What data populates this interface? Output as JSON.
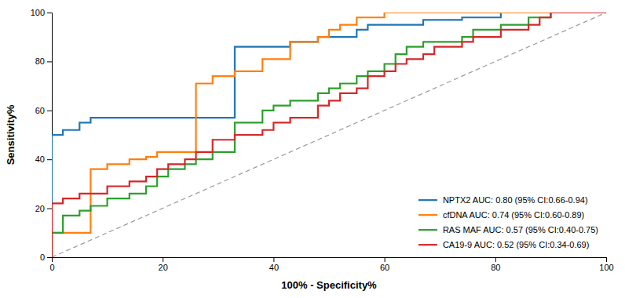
{
  "chart_data": {
    "type": "line",
    "xlabel": "100% - Specificity%",
    "ylabel": "Sensitivity%",
    "xlim": [
      0,
      100
    ],
    "ylim": [
      0,
      100
    ],
    "xticks": [
      0,
      20,
      40,
      60,
      80,
      100
    ],
    "yticks": [
      0,
      20,
      40,
      60,
      80,
      100
    ],
    "grid": false,
    "legend": "lower right",
    "series": [
      {
        "color": "#999999",
        "line_style": "dashed",
        "x": [
          0,
          100
        ],
        "values": [
          0,
          100
        ]
      },
      {
        "name": "NPTX2 AUC: 0.80 (95% CI:0.66-0.94)",
        "x": [
          0,
          0,
          2,
          2,
          5,
          5,
          7,
          7,
          10,
          10,
          14,
          14,
          19,
          19,
          24,
          24,
          26,
          26,
          33,
          33,
          38,
          38,
          43,
          43,
          48,
          48,
          55,
          55,
          57,
          57,
          62,
          62,
          67,
          67,
          69,
          69,
          74,
          74,
          76,
          76,
          81,
          81,
          86,
          86,
          88,
          88,
          90,
          90,
          95,
          95,
          100,
          100
        ],
        "values": [
          0,
          50,
          50,
          52,
          52,
          55,
          55,
          57,
          57,
          57,
          57,
          57,
          57,
          57,
          57,
          57,
          57,
          57,
          57,
          86,
          86,
          86,
          86,
          88,
          88,
          90,
          90,
          93,
          93,
          95,
          95,
          95,
          95,
          97,
          97,
          97,
          97,
          98,
          98,
          98,
          98,
          100,
          100,
          100,
          100,
          100,
          100,
          100,
          100,
          100,
          100,
          100
        ]
      },
      {
        "name": "cfDNA AUC: 0.74 (95% CI:0.60-0.89)",
        "x": [
          0,
          0,
          2,
          2,
          5,
          5,
          7,
          7,
          10,
          10,
          14,
          14,
          17,
          17,
          19,
          19,
          21,
          21,
          24,
          24,
          26,
          26,
          29,
          29,
          33,
          33,
          38,
          38,
          40,
          40,
          43,
          43,
          48,
          48,
          50,
          50,
          52,
          52,
          55,
          55,
          57,
          57,
          60,
          60,
          62,
          62,
          64,
          64,
          67,
          67,
          69,
          69,
          74,
          74,
          76,
          76,
          81,
          81,
          86,
          86,
          88,
          88,
          90,
          90,
          95,
          95,
          100,
          100
        ],
        "values": [
          0,
          10,
          10,
          10,
          10,
          10,
          10,
          36,
          36,
          38,
          38,
          40,
          40,
          41,
          41,
          43,
          43,
          43,
          43,
          43,
          43,
          71,
          71,
          74,
          74,
          76,
          76,
          81,
          81,
          81,
          81,
          88,
          88,
          90,
          90,
          93,
          93,
          95,
          95,
          98,
          98,
          98,
          98,
          100,
          100,
          100,
          100,
          100,
          100,
          100,
          100,
          100,
          100,
          100,
          100,
          100,
          100,
          100,
          100,
          100,
          100,
          100,
          100,
          100,
          100,
          100,
          100,
          100
        ]
      },
      {
        "name": "RAS MAF AUC: 0.57 (95% CI:0.40-0.75)",
        "x": [
          0,
          0,
          2,
          2,
          5,
          5,
          7,
          7,
          10,
          10,
          14,
          14,
          17,
          17,
          19,
          19,
          21,
          21,
          24,
          24,
          26,
          26,
          29,
          29,
          33,
          33,
          38,
          38,
          40,
          40,
          43,
          43,
          48,
          48,
          50,
          50,
          52,
          52,
          55,
          55,
          57,
          57,
          60,
          60,
          62,
          62,
          64,
          64,
          67,
          67,
          69,
          69,
          74,
          74,
          76,
          76,
          81,
          81,
          86,
          86,
          88,
          88,
          90,
          90,
          95,
          95,
          100,
          100
        ],
        "values": [
          0,
          10,
          10,
          17,
          17,
          19,
          19,
          21,
          21,
          24,
          24,
          26,
          26,
          29,
          29,
          33,
          33,
          36,
          36,
          38,
          38,
          40,
          40,
          43,
          43,
          55,
          55,
          60,
          60,
          62,
          62,
          64,
          64,
          67,
          67,
          69,
          69,
          71,
          71,
          74,
          74,
          76,
          76,
          79,
          79,
          83,
          83,
          86,
          86,
          88,
          88,
          88,
          88,
          90,
          90,
          93,
          93,
          95,
          95,
          98,
          98,
          98,
          98,
          100,
          100,
          100,
          100,
          100
        ]
      },
      {
        "name": "CA19-9 AUC: 0.52 (95% CI:0.34-0.69)",
        "x": [
          0,
          0,
          2,
          2,
          5,
          5,
          7,
          7,
          10,
          10,
          14,
          14,
          17,
          17,
          19,
          19,
          21,
          21,
          24,
          24,
          26,
          26,
          29,
          29,
          33,
          33,
          38,
          38,
          40,
          40,
          43,
          43,
          48,
          48,
          50,
          50,
          52,
          52,
          55,
          55,
          57,
          57,
          60,
          60,
          62,
          62,
          64,
          64,
          67,
          67,
          69,
          69,
          74,
          74,
          76,
          76,
          81,
          81,
          86,
          86,
          88,
          88,
          90,
          90,
          95,
          95,
          100,
          100
        ],
        "values": [
          0,
          22,
          22,
          24,
          24,
          26,
          26,
          26,
          26,
          29,
          29,
          31,
          31,
          33,
          33,
          36,
          36,
          38,
          38,
          40,
          40,
          43,
          43,
          48,
          48,
          50,
          50,
          52,
          52,
          55,
          55,
          57,
          57,
          62,
          62,
          64,
          64,
          67,
          67,
          69,
          69,
          74,
          74,
          76,
          76,
          79,
          79,
          81,
          81,
          83,
          83,
          86,
          86,
          88,
          88,
          90,
          90,
          93,
          93,
          95,
          95,
          98,
          98,
          100,
          100,
          100,
          100,
          100
        ]
      }
    ]
  }
}
